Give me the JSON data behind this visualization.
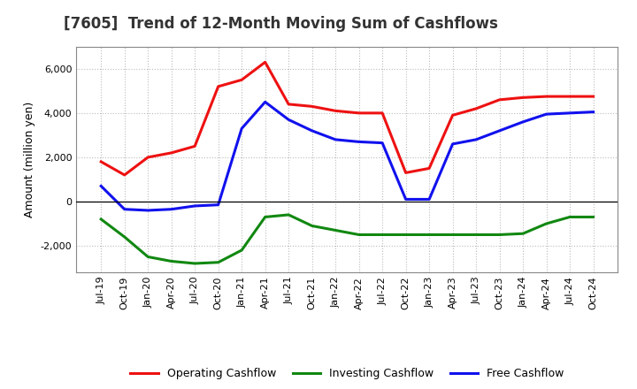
{
  "title": "[7605]  Trend of 12-Month Moving Sum of Cashflows",
  "ylabel": "Amount (million yen)",
  "x_labels": [
    "Jul-19",
    "Oct-19",
    "Jan-20",
    "Apr-20",
    "Jul-20",
    "Oct-20",
    "Jan-21",
    "Apr-21",
    "Jul-21",
    "Oct-21",
    "Jan-22",
    "Apr-22",
    "Jul-22",
    "Oct-22",
    "Jan-23",
    "Apr-23",
    "Jul-23",
    "Oct-23",
    "Jan-24",
    "Apr-24",
    "Jul-24",
    "Oct-24"
  ],
  "operating": [
    1800,
    1200,
    2000,
    2200,
    2500,
    5200,
    5500,
    6300,
    4400,
    4300,
    4100,
    4000,
    4000,
    1300,
    1500,
    3900,
    4200,
    4600,
    4700,
    4750,
    4750,
    4750
  ],
  "investing": [
    -800,
    -1600,
    -2500,
    -2700,
    -2800,
    -2750,
    -2200,
    -700,
    -600,
    -1100,
    -1300,
    -1500,
    -1500,
    -1500,
    -1500,
    -1500,
    -1500,
    -1500,
    -1450,
    -1000,
    -700,
    -700
  ],
  "free": [
    700,
    -350,
    -400,
    -350,
    -200,
    -150,
    3300,
    4500,
    3700,
    3200,
    2800,
    2700,
    2650,
    100,
    100,
    2600,
    2800,
    3200,
    3600,
    3950,
    4000,
    4050
  ],
  "operating_color": "#EE1111",
  "investing_color": "#118811",
  "free_color": "#1111EE",
  "ylim": [
    -3200,
    7000
  ],
  "yticks": [
    -2000,
    0,
    2000,
    4000,
    6000
  ],
  "background_color": "#FFFFFF",
  "grid_color": "#BBBBBB",
  "title_color": "#333333"
}
